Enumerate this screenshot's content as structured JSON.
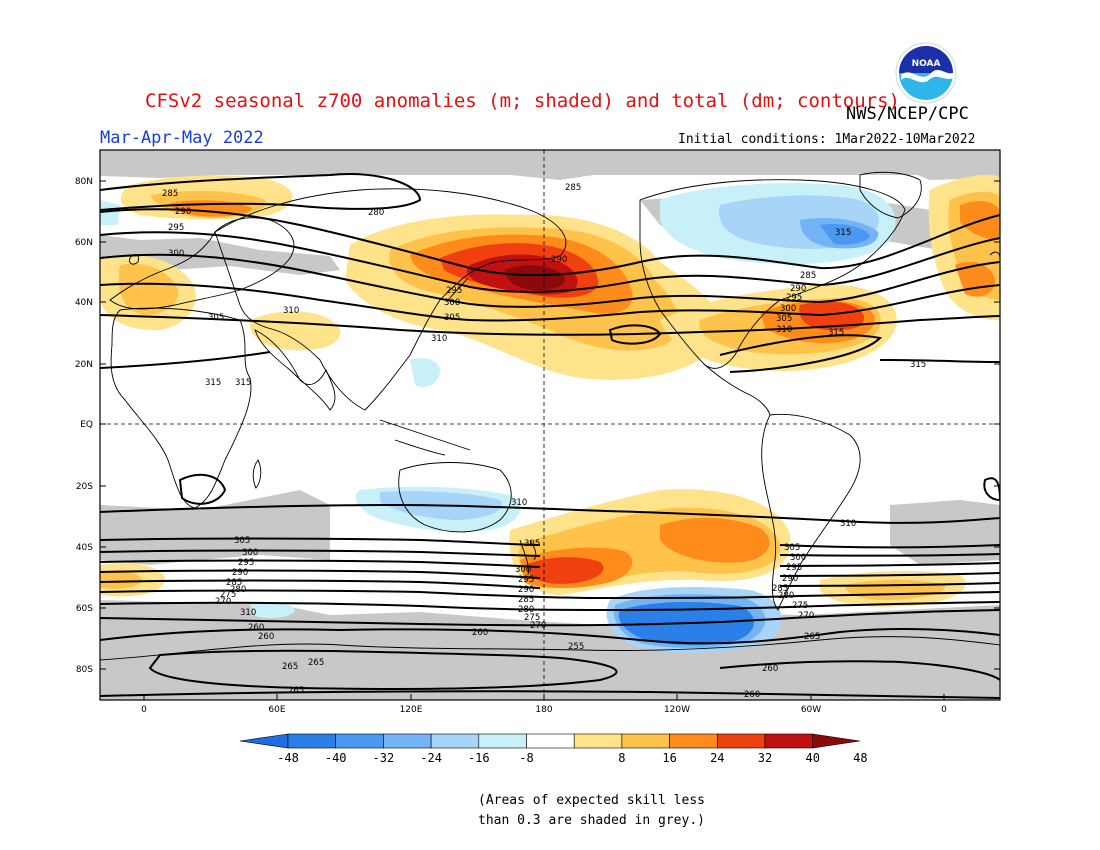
{
  "header": {
    "title": "CFSv2 seasonal z700 anomalies (m; shaded) and total (dm; contours)",
    "agency": "NWS/NCEP/CPC",
    "season": "Mar-Apr-May 2022",
    "initial_conditions": "Initial conditions: 1Mar2022-10Mar2022",
    "logo_text": "NOAA"
  },
  "map": {
    "lat_labels": [
      "80N",
      "60N",
      "40N",
      "20N",
      "EQ",
      "20S",
      "40S",
      "60S",
      "80S"
    ],
    "lon_labels": [
      "0",
      "60E",
      "120E",
      "180",
      "120W",
      "60W",
      "0"
    ],
    "contour_labels": {
      "north": [
        "285",
        "290",
        "295",
        "300",
        "305",
        "310",
        "315",
        "280",
        "285",
        "290",
        "295",
        "300",
        "305",
        "310",
        "315",
        "285",
        "290",
        "295",
        "300",
        "305",
        "310",
        "315",
        "315",
        "315"
      ],
      "south": [
        "310",
        "305",
        "300",
        "295",
        "290",
        "285",
        "280",
        "275",
        "270",
        "305",
        "300",
        "295",
        "290",
        "285",
        "280",
        "275",
        "270",
        "265",
        "260",
        "260",
        "265",
        "265",
        "260",
        "255",
        "260",
        "260",
        "310",
        "310",
        "305",
        "300",
        "295",
        "290",
        "285",
        "280",
        "275",
        "270",
        "265"
      ]
    },
    "colors": {
      "grey_skill": "#c8c8c8",
      "continent_line": "#000000",
      "dashed_ref": "#000000"
    }
  },
  "colorbar": {
    "labels": [
      "-48",
      "-40",
      "-32",
      "-24",
      "-16",
      "-8",
      "8",
      "16",
      "24",
      "32",
      "40",
      "48"
    ],
    "colors": [
      "#1e6ee0",
      "#2b7fe8",
      "#4a98ef",
      "#72b4f5",
      "#a8d4f8",
      "#c8f0f8",
      "#ffffff",
      "#ffe38a",
      "#ffc24a",
      "#ff8c1a",
      "#f04010",
      "#c01010",
      "#8a0a0a"
    ]
  },
  "note": {
    "line1": "(Areas of expected skill less",
    "line2": "than 0.3 are shaded in grey.)"
  }
}
